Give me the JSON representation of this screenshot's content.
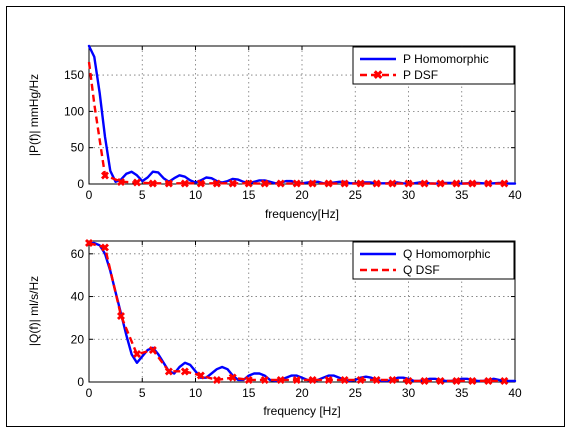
{
  "colors": {
    "homomorphic": "#0000ff",
    "dsf": "#ff0000"
  },
  "chart_data": [
    {
      "type": "line",
      "xlabel": "frequency[Hz]",
      "ylabel": "|P(f)|  mmHg/Hz",
      "xlim": [
        0,
        40
      ],
      "ylim": [
        0,
        190
      ],
      "xticks": [
        0,
        5,
        10,
        15,
        20,
        25,
        30,
        35,
        40
      ],
      "yticks": [
        0,
        50,
        100,
        150
      ],
      "grid": true,
      "legend_position": "top-right",
      "series": [
        {
          "name": "P Homomorphic",
          "style": "solid",
          "color": "#0000ff",
          "x": [
            0,
            0.5,
            1,
            1.5,
            2,
            2.5,
            3,
            3.5,
            4,
            4.5,
            5,
            5.5,
            6,
            6.5,
            7,
            7.5,
            8,
            8.5,
            9,
            9.5,
            10,
            10.5,
            11,
            11.5,
            12,
            12.5,
            13,
            13.5,
            14,
            14.5,
            15,
            15.5,
            16,
            16.5,
            17,
            17.5,
            18,
            18.5,
            19,
            19.5,
            20,
            20.5,
            21,
            21.5,
            22,
            22.5,
            23,
            23.5,
            24,
            24.5,
            25,
            25.5,
            26,
            26.5,
            27,
            27.5,
            28,
            28.5,
            29,
            29.5,
            30,
            30.5,
            31,
            31.5,
            32,
            32.5,
            33,
            33.5,
            34,
            34.5,
            35,
            35.5,
            36,
            36.5,
            37,
            37.5,
            38,
            38.5,
            39,
            39.5,
            40
          ],
          "y": [
            190,
            175,
            125,
            65,
            18,
            3,
            6,
            14,
            17,
            12,
            4,
            9,
            17,
            16,
            8,
            3,
            8,
            12,
            10,
            5,
            2,
            5,
            9,
            8,
            4,
            2,
            4,
            7,
            6,
            3,
            1,
            3,
            5,
            5,
            3,
            1,
            2,
            4,
            4,
            2,
            1,
            2,
            3,
            3,
            1,
            1,
            2,
            3,
            3,
            1,
            1,
            2,
            2,
            2,
            1,
            1,
            1,
            2,
            2,
            1,
            0.5,
            1,
            2,
            2,
            1,
            0.5,
            1,
            1.5,
            1.5,
            1,
            0.5,
            1,
            1.5,
            1.5,
            1,
            0.5,
            1,
            1.5,
            1,
            0.5,
            0.5
          ]
        },
        {
          "name": "P DSF",
          "style": "dashed-x",
          "color": "#ff0000",
          "x": [
            0,
            0.5,
            1.5,
            3,
            4.5,
            6,
            7.5,
            9,
            10.5,
            12,
            13.5,
            15,
            16.5,
            18,
            19.5,
            21,
            22.5,
            24,
            25.5,
            27,
            28.5,
            30,
            31.5,
            33,
            34.5,
            36,
            37.5,
            39
          ],
          "y": [
            168,
            110,
            12,
            3,
            2,
            1,
            1,
            1,
            1,
            1,
            1,
            1,
            0.5,
            0.5,
            0.5,
            0.5,
            0.5,
            0.5,
            0.5,
            0.5,
            0.5,
            0.5,
            0.5,
            0.5,
            0.5,
            0.5,
            0.5,
            0.5
          ],
          "markers": [
            1.5,
            3,
            4.5,
            6,
            7.5,
            9,
            10.5,
            12,
            13.5,
            15,
            16.5,
            18,
            19.5,
            21,
            22.5,
            24,
            25.5,
            27,
            28.5,
            30,
            31.5,
            33,
            34.5,
            36,
            37.5,
            39
          ]
        }
      ]
    },
    {
      "type": "line",
      "xlabel": "frequency [Hz]",
      "ylabel": "|Q(f)|  ml/s/Hz",
      "xlim": [
        0,
        40
      ],
      "ylim": [
        0,
        66
      ],
      "xticks": [
        0,
        5,
        10,
        15,
        20,
        25,
        30,
        35,
        40
      ],
      "yticks": [
        0,
        20,
        40,
        60
      ],
      "grid": true,
      "legend_position": "top-right",
      "series": [
        {
          "name": "Q Homomorphic",
          "style": "solid",
          "color": "#0000ff",
          "x": [
            0,
            0.5,
            1,
            1.5,
            2,
            2.5,
            3,
            3.5,
            4,
            4.5,
            5,
            5.5,
            6,
            6.5,
            7,
            7.5,
            8,
            8.5,
            9,
            9.5,
            10,
            10.5,
            11,
            11.5,
            12,
            12.5,
            13,
            13.5,
            14,
            14.5,
            15,
            15.5,
            16,
            16.5,
            17,
            17.5,
            18,
            18.5,
            19,
            19.5,
            20,
            20.5,
            21,
            21.5,
            22,
            22.5,
            23,
            23.5,
            24,
            24.5,
            25,
            25.5,
            26,
            26.5,
            27,
            27.5,
            28,
            28.5,
            29,
            29.5,
            30,
            30.5,
            31,
            31.5,
            32,
            32.5,
            33,
            33.5,
            34,
            34.5,
            35,
            35.5,
            36,
            36.5,
            37,
            37.5,
            38,
            38.5,
            39,
            39.5,
            40
          ],
          "y": [
            65,
            65,
            64,
            60,
            52,
            42,
            32,
            22,
            13,
            9,
            12,
            15,
            16,
            13,
            9,
            5,
            4,
            7,
            9,
            8,
            5,
            2,
            2,
            4,
            6,
            7,
            6,
            3,
            1,
            1,
            3,
            4,
            4,
            3,
            1,
            0.5,
            1,
            2,
            3,
            3,
            2,
            1,
            0.5,
            1,
            2,
            3,
            3,
            2,
            1,
            0.5,
            1,
            2,
            2.5,
            2,
            1,
            0.5,
            0.5,
            1,
            2,
            2,
            1.5,
            0.5,
            0.5,
            1,
            1.5,
            1.5,
            1,
            0.5,
            0.5,
            1,
            1.5,
            1.5,
            1,
            0.5,
            0.5,
            1,
            1.5,
            1,
            0.5,
            0.5,
            0.5
          ]
        },
        {
          "name": "Q DSF",
          "style": "dashed-x",
          "color": "#ff0000",
          "x": [
            0,
            1.5,
            3,
            4.5,
            6,
            7.5,
            9,
            10.5,
            12,
            13.5,
            15,
            16.5,
            18,
            19.5,
            21,
            22.5,
            24,
            25.5,
            27,
            28.5,
            30,
            31.5,
            33,
            34.5,
            36,
            37.5,
            39
          ],
          "y": [
            65,
            63,
            31,
            13,
            15,
            5,
            5,
            3,
            1,
            2,
            1,
            1,
            1,
            1,
            1,
            1,
            1,
            1,
            1,
            1,
            0.5,
            0.5,
            0.5,
            0.5,
            0.5,
            0.5,
            0.5
          ],
          "markers": [
            0,
            1.5,
            3,
            4.5,
            6,
            7.5,
            9,
            10.5,
            12,
            13.5,
            15,
            16.5,
            18,
            19.5,
            21,
            22.5,
            24,
            25.5,
            27,
            28.5,
            30,
            31.5,
            33,
            34.5,
            36,
            37.5,
            39
          ]
        }
      ]
    }
  ]
}
